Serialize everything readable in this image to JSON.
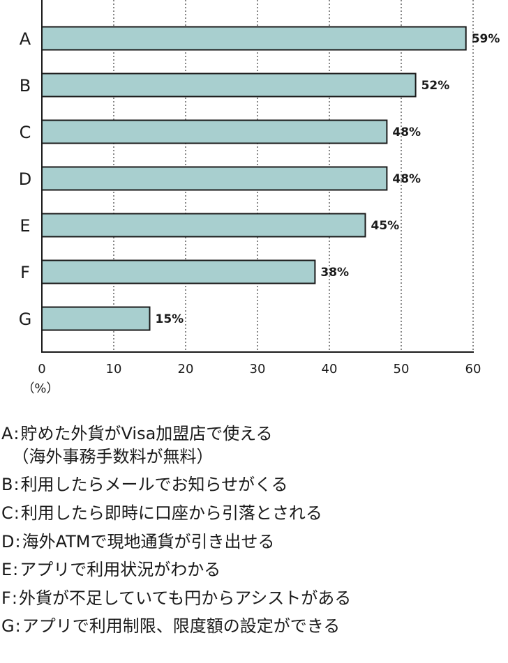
{
  "chart_data": {
    "type": "bar",
    "orientation": "horizontal",
    "categories": [
      "A",
      "B",
      "C",
      "D",
      "E",
      "F",
      "G"
    ],
    "values": [
      59,
      52,
      48,
      48,
      45,
      38,
      15
    ],
    "value_labels": [
      "59%",
      "52%",
      "48%",
      "48%",
      "45%",
      "38%",
      "15%"
    ],
    "xlim": [
      0,
      60
    ],
    "x_ticks": [
      "0",
      "10",
      "20",
      "30",
      "40",
      "50",
      "60"
    ],
    "x_unit_label": "（%）",
    "grid": "vertical dotted",
    "bar_color": "#a8cfcf",
    "bar_edge_color": "#1a1a1a"
  },
  "legend": [
    {
      "key": "A",
      "sep": ":",
      "text": "貯めた外貨がVisa加盟店で使える",
      "cont": "（海外事務手数料が無料）"
    },
    {
      "key": "B",
      "sep": ":",
      "text": "利用したらメールでお知らせがくる"
    },
    {
      "key": "C",
      "sep": ":",
      "text": "利用したら即時に口座から引落とされる"
    },
    {
      "key": "D",
      "sep": ":",
      "text": "海外ATMで現地通貨が引き出せる"
    },
    {
      "key": "E",
      "sep": ":",
      "text": "アプリで利用状況がわかる"
    },
    {
      "key": "F",
      "sep": ":",
      "text": "外貨が不足していても円からアシストがある"
    },
    {
      "key": "G",
      "sep": ":",
      "text": "アプリで利用制限、限度額の設定ができる"
    }
  ]
}
